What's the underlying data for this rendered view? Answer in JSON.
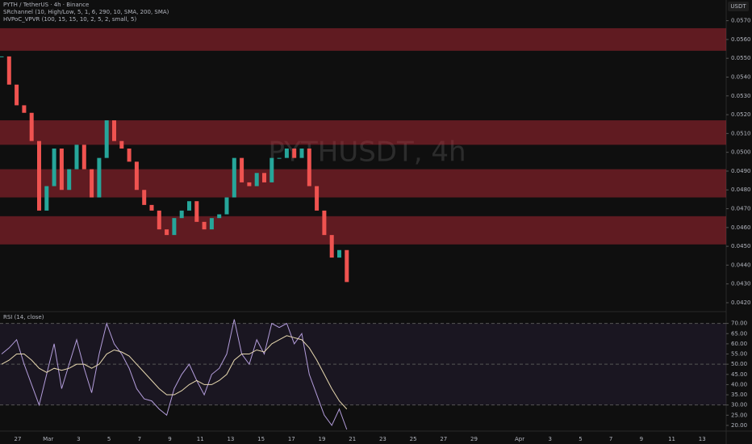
{
  "chart_data": [
    {
      "type": "candlestick",
      "title": "PYTH / TetherUS · 4h · Binance",
      "indicators": [
        "SRchannel (10, High/Low, 5, 1, 6, 290, 10, SMA, 200, SMA)",
        "HVPoC_VPVR (100, 15, 15, 10, 2, 5, 2, small, 5)"
      ],
      "watermark": "PYTHUSDT, 4h",
      "currency": "USDT",
      "values": [
        0.0551,
        0.0536,
        0.0525,
        0.0521,
        0.0506,
        0.0469,
        0.0482,
        0.0502,
        0.048,
        0.0491,
        0.0504,
        0.0491,
        0.0476,
        0.0497,
        0.0517,
        0.0506,
        0.0502,
        0.0495,
        0.048,
        0.0472,
        0.0469,
        0.0459,
        0.0456,
        0.0465,
        0.0469,
        0.0474,
        0.0463,
        0.0459,
        0.0465,
        0.0467,
        0.0476,
        0.0497,
        0.0484,
        0.0482,
        0.0489,
        0.0484,
        0.0497,
        0.0497,
        0.0502,
        0.0497,
        0.0502,
        0.0482,
        0.0469,
        0.0456,
        0.0444,
        0.0448,
        0.0431
      ],
      "up_color": "#26a69a",
      "down_color": "#ef5350",
      "zones": [
        [
          0.0566,
          0.0554
        ],
        [
          0.0517,
          0.0504
        ],
        [
          0.0491,
          0.0476
        ],
        [
          0.0466,
          0.0451
        ]
      ],
      "zone_color": "rgba(178,40,52,0.5)",
      "ylim": [
        0.04157,
        0.0581
      ],
      "yticks": [
        {
          "value": 0.042,
          "label": "0.0420"
        },
        {
          "value": 0.043,
          "label": "0.0430"
        },
        {
          "value": 0.044,
          "label": "0.0440"
        },
        {
          "value": 0.045,
          "label": "0.0450"
        },
        {
          "value": 0.046,
          "label": "0.0460"
        },
        {
          "value": 0.047,
          "label": "0.0470"
        },
        {
          "value": 0.048,
          "label": "0.0480"
        },
        {
          "value": 0.049,
          "label": "0.0490"
        },
        {
          "value": 0.05,
          "label": "0.0500"
        },
        {
          "value": 0.051,
          "label": "0.0510"
        },
        {
          "value": 0.052,
          "label": "0.0520"
        },
        {
          "value": 0.053,
          "label": "0.0530"
        },
        {
          "value": 0.054,
          "label": "0.0540"
        },
        {
          "value": 0.055,
          "label": "0.0550"
        },
        {
          "value": 0.056,
          "label": "0.0560"
        },
        {
          "value": 0.057,
          "label": "0.0570"
        }
      ]
    },
    {
      "type": "line",
      "title": "RSI (14, close)",
      "series": [
        {
          "name": "RSI",
          "color": "#b39ddb",
          "values": [
            55,
            58,
            62,
            50,
            40,
            30,
            45,
            60,
            38,
            50,
            62,
            48,
            36,
            55,
            70,
            60,
            55,
            48,
            38,
            33,
            32,
            28,
            25,
            38,
            45,
            50,
            42,
            35,
            45,
            48,
            55,
            72,
            55,
            50,
            62,
            55,
            70,
            68,
            70,
            60,
            65,
            45,
            35,
            25,
            20,
            28,
            18
          ]
        },
        {
          "name": "RSI-based MA",
          "color": "#e8d9b0",
          "values": [
            50,
            52,
            55,
            55,
            52,
            48,
            46,
            48,
            47,
            48,
            50,
            50,
            48,
            50,
            55,
            57,
            56,
            54,
            50,
            46,
            42,
            38,
            35,
            35,
            37,
            40,
            42,
            40,
            40,
            42,
            45,
            52,
            55,
            55,
            57,
            56,
            60,
            62,
            64,
            63,
            62,
            58,
            52,
            45,
            38,
            32,
            28
          ]
        }
      ],
      "levels": [
        70,
        50,
        30
      ],
      "ylim": [
        18,
        75
      ],
      "yticks": [
        {
          "value": 70,
          "label": "70.00"
        },
        {
          "value": 65,
          "label": "65.00"
        },
        {
          "value": 60,
          "label": "60.00"
        },
        {
          "value": 55,
          "label": "55.00"
        },
        {
          "value": 50,
          "label": "50.00"
        },
        {
          "value": 45,
          "label": "45.00"
        },
        {
          "value": 40,
          "label": "40.00"
        },
        {
          "value": 35,
          "label": "35.00"
        },
        {
          "value": 30,
          "label": "30.00"
        },
        {
          "value": 25,
          "label": "25.00"
        },
        {
          "value": 20,
          "label": "20.00"
        }
      ]
    }
  ],
  "time_axis": [
    "27",
    "Mar",
    "3",
    "5",
    "7",
    "9",
    "11",
    "13",
    "15",
    "17",
    "19",
    "21",
    "23",
    "25",
    "27",
    "29",
    "Apr",
    "3",
    "5",
    "7",
    "9",
    "11",
    "13"
  ]
}
